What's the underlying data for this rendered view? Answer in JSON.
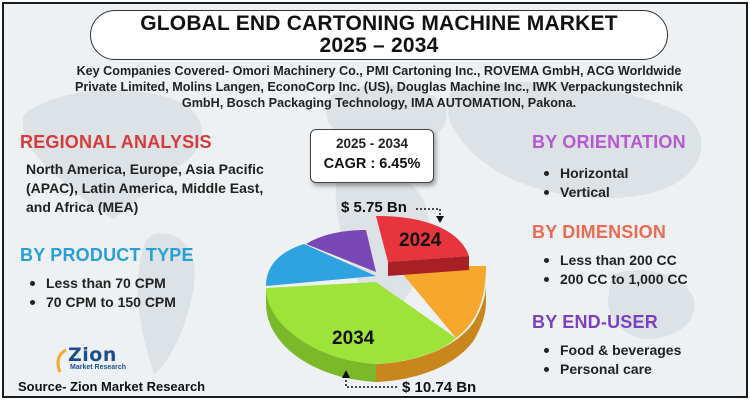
{
  "title": {
    "line1": "GLOBAL END CARTONING MACHINE MARKET",
    "line2": "2025 – 2034"
  },
  "key_companies": "Key Companies Covered- Omori Machinery Co., PMI Cartoning Inc., ROVEMA GmbH, ACG Worldwide Private Limited, Molins Langen, EconoCorp Inc. (US), Douglas Machine Inc., IWK Verpackungstechnik GmbH, Bosch Packaging Technology, IMA AUTOMATION, Pakona.",
  "regional": {
    "heading": "REGIONAL ANALYSIS",
    "text": "North America, Europe, Asia Pacific (APAC), Latin America, Middle East, and Africa (MEA)"
  },
  "product_type": {
    "heading": "BY PRODUCT TYPE",
    "items": [
      "Less than 70 CPM",
      "70 CPM to 150 CPM"
    ]
  },
  "cagr": {
    "period": "2025 - 2034",
    "value": "CAGR : 6.45%"
  },
  "values": {
    "start": "$ 5.75 Bn",
    "end": "$ 10.74 Bn"
  },
  "pie": {
    "label_2024": "2024",
    "label_2034": "2034",
    "colors": {
      "red": "#e8343c",
      "orange": "#f6a82c",
      "green": "#9ee33a",
      "blue": "#2ea3e0",
      "purple": "#7a47b6"
    }
  },
  "orientation": {
    "heading": "BY ORIENTATION",
    "items": [
      "Horizontal",
      "Vertical"
    ]
  },
  "dimension": {
    "heading": "BY DIMENSION",
    "items": [
      "Less than 200 CC",
      "200 CC to 1,000 CC"
    ]
  },
  "end_user": {
    "heading": "BY END-USER",
    "items": [
      "Food & beverages",
      "Personal care"
    ]
  },
  "logo": {
    "word": "Zion",
    "sub": "Market Research"
  },
  "source": "Source- Zion Market Research"
}
